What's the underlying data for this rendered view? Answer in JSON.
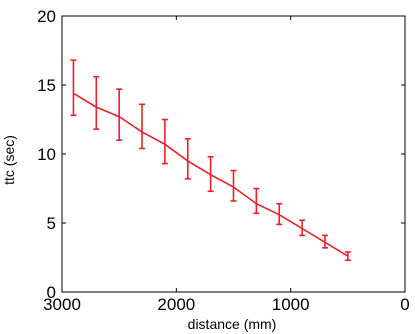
{
  "chart_data": {
    "type": "line",
    "title": "",
    "xlabel": "distance (mm)",
    "ylabel": "ttc (sec)",
    "xlim": [
      3000,
      0
    ],
    "ylim": [
      0,
      20
    ],
    "x_reversed": true,
    "xticks": [
      3000,
      2000,
      1000,
      0
    ],
    "yticks": [
      0,
      5,
      10,
      15,
      20
    ],
    "xtick_labels": [
      "3000",
      "2000",
      "1000",
      "0"
    ],
    "ytick_labels": [
      "0",
      "5",
      "10",
      "15",
      "20"
    ],
    "grid": false,
    "legend": "none",
    "color": "#e8212b",
    "series": [
      {
        "x": [
          2900,
          2700,
          2500,
          2300,
          2100,
          1900,
          1700,
          1500,
          1300,
          1100,
          900,
          700,
          500
        ],
        "y": [
          14.4,
          13.4,
          12.7,
          11.6,
          10.7,
          9.5,
          8.5,
          7.6,
          6.4,
          5.6,
          4.6,
          3.6,
          2.6
        ],
        "err_low": [
          12.8,
          11.8,
          11.0,
          10.4,
          9.3,
          8.2,
          7.3,
          6.6,
          5.7,
          4.9,
          4.1,
          3.2,
          2.3
        ],
        "err_high": [
          16.8,
          15.6,
          14.7,
          13.6,
          12.5,
          11.1,
          9.8,
          8.8,
          7.5,
          6.4,
          5.2,
          4.1,
          2.9
        ]
      }
    ]
  }
}
